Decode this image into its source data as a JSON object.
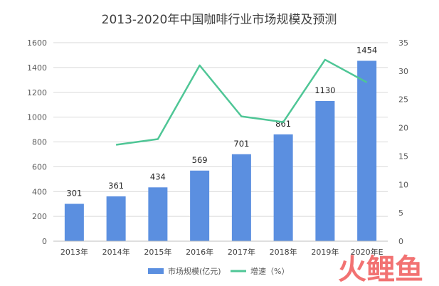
{
  "chart_data": {
    "type": "bar",
    "title": "2013-2020年中国咖啡行业市场规模及预测",
    "categories": [
      "2013年",
      "2014年",
      "2015年",
      "2016年",
      "2017年",
      "2018年",
      "2019年",
      "2020年E"
    ],
    "series": [
      {
        "name": "市场规模(亿元)",
        "type": "bar",
        "axis": "left",
        "color": "#5B8FE0",
        "values": [
          301,
          361,
          434,
          569,
          701,
          861,
          1130,
          1454
        ],
        "labels": [
          "301",
          "361",
          "434",
          "569",
          "701",
          "861",
          "1130",
          "1454"
        ]
      },
      {
        "name": "增速（%）",
        "type": "line",
        "axis": "right",
        "color": "#4FC696",
        "values": [
          null,
          17,
          18,
          31,
          22,
          21,
          32,
          28
        ]
      }
    ],
    "ylim": [
      0,
      1600
    ],
    "y_ticks": [
      "0",
      "200",
      "400",
      "600",
      "800",
      "1000",
      "1200",
      "1400",
      "1600"
    ],
    "y2lim": [
      0,
      35
    ],
    "y2_ticks": [
      "0",
      "5",
      "10",
      "15",
      "20",
      "25",
      "30",
      "35"
    ],
    "grid": true,
    "legend_position": "bottom-center"
  },
  "watermark": {
    "text": "火鲤鱼",
    "color": "#F05A5A"
  }
}
